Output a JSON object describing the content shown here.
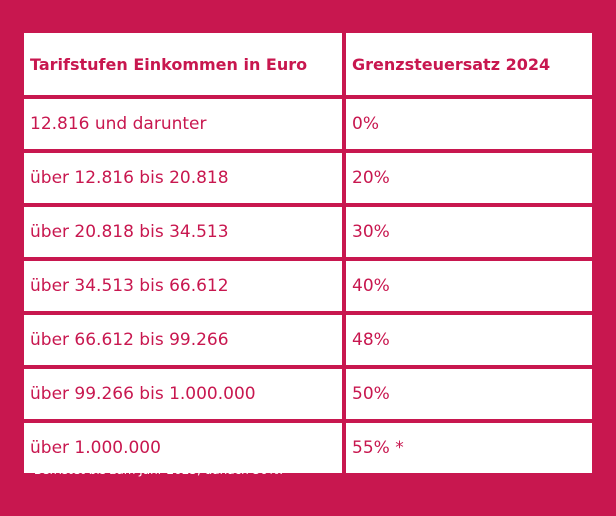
{
  "table": {
    "headers": [
      "Tarifstufen Einkommen in Euro",
      "Grenzsteuersatz 2024"
    ],
    "rows": [
      [
        "12.816 und darunter",
        "0%"
      ],
      [
        "über 12.816 bis 20.818",
        "20%"
      ],
      [
        "über 20.818 bis 34.513",
        "30%"
      ],
      [
        "über 34.513 bis 66.612",
        "40%"
      ],
      [
        "über 66.612 bis 99.266",
        "48%"
      ],
      [
        "über 99.266 bis 1.000.000",
        "50%"
      ],
      [
        "über 1.000.000",
        "55% *"
      ]
    ]
  },
  "footnote": "* Befristet bis zum Jahr 2025, danach 50%.",
  "colors": {
    "background": "#c8174f",
    "cell_background": "#ffffff",
    "text": "#c8174f"
  }
}
